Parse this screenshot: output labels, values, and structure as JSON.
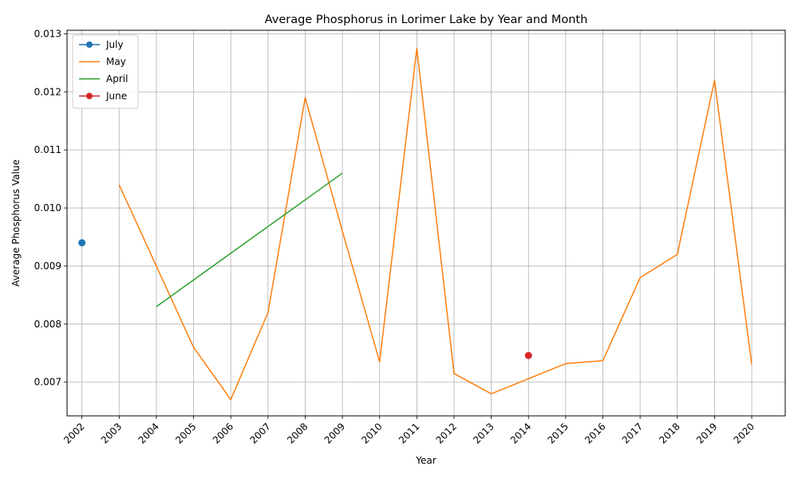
{
  "chart_data": {
    "type": "line",
    "title": "Average Phosphorus in Lorimer Lake by Year and Month",
    "xlabel": "Year",
    "ylabel": "Average Phosphorus Value",
    "x_ticks": [
      "2002",
      "2003",
      "2004",
      "2005",
      "2006",
      "2007",
      "2008",
      "2009",
      "2010",
      "2011",
      "2012",
      "2013",
      "2014",
      "2015",
      "2016",
      "2017",
      "2018",
      "2019",
      "2020"
    ],
    "y_ticks": [
      "0.007",
      "0.008",
      "0.009",
      "0.010",
      "0.011",
      "0.012",
      "0.013"
    ],
    "xlim": [
      2001.6,
      2020.9
    ],
    "ylim": [
      0.00642,
      0.01306
    ],
    "grid": true,
    "legend_position": "upper-left",
    "series": [
      {
        "name": "July",
        "color": "#1f77b4",
        "marker": true,
        "points": [
          [
            2002,
            0.0094
          ]
        ]
      },
      {
        "name": "May",
        "color": "#ff7f0e",
        "marker": false,
        "points": [
          [
            2003,
            0.0104
          ],
          [
            2004,
            0.009
          ],
          [
            2005,
            0.0076
          ],
          [
            2006,
            0.0067
          ],
          [
            2007,
            0.0082
          ],
          [
            2008,
            0.0119
          ],
          [
            2009,
            0.0096
          ],
          [
            2010,
            0.00735
          ],
          [
            2011,
            0.01275
          ],
          [
            2012,
            0.00715
          ],
          [
            2013,
            0.0068
          ],
          [
            2014,
            0.00706
          ],
          [
            2015,
            0.00732
          ],
          [
            2016,
            0.00737
          ],
          [
            2017,
            0.0088
          ],
          [
            2018,
            0.0092
          ],
          [
            2019,
            0.0122
          ],
          [
            2020,
            0.0073
          ]
        ]
      },
      {
        "name": "April",
        "color": "#2ca02c",
        "marker": false,
        "points": [
          [
            2004,
            0.0083
          ],
          [
            2009,
            0.0106
          ]
        ]
      },
      {
        "name": "June",
        "color": "#d62728",
        "marker": true,
        "points": [
          [
            2014,
            0.00746
          ]
        ]
      }
    ]
  }
}
